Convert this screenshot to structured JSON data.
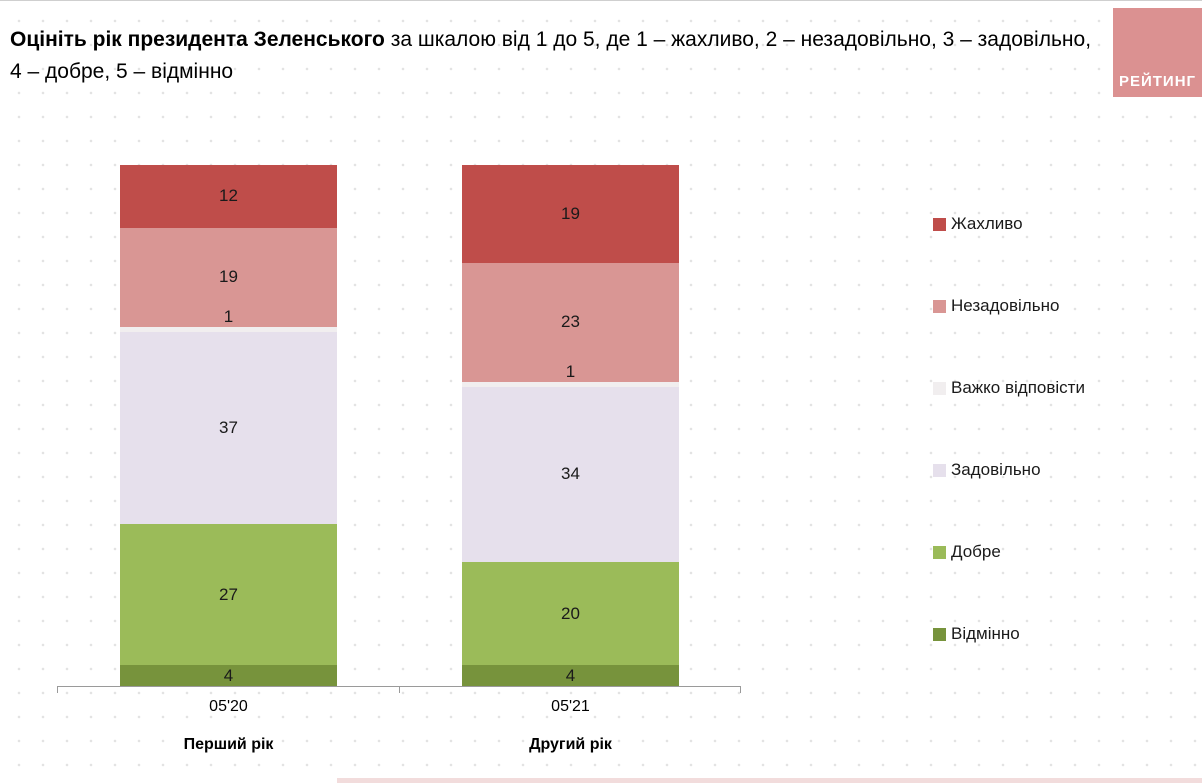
{
  "brand": {
    "name": "РЕЙТИНГ",
    "color": "#db9191"
  },
  "title": {
    "emphasis": "Оцініть рік президента Зеленського",
    "rest": " за шкалою від 1 до 5, де 1 – жахливо, 2 – незадовільно, 3 – задовільно, 4 – добре, 5 – відмінно"
  },
  "chart_data": {
    "type": "bar",
    "variant": "stacked-column",
    "stacked": true,
    "stack_order": "top-to-bottom",
    "legend_position": "right",
    "grid": "dotted page background",
    "ylim": [
      0,
      100
    ],
    "categories": [
      "05'20",
      "05'21"
    ],
    "category_sublabels": [
      "Перший рік",
      "Другий рік"
    ],
    "series": [
      {
        "name": "Жахливо",
        "color": "#bf4d4a",
        "values": [
          12,
          19
        ]
      },
      {
        "name": "Незадовільно",
        "color": "#d99694",
        "values": [
          19,
          23
        ]
      },
      {
        "name": "Важко відповісти",
        "color": "#f1eeef",
        "values": [
          1,
          1
        ]
      },
      {
        "name": "Задовільно",
        "color": "#e6e0ec",
        "values": [
          37,
          34
        ]
      },
      {
        "name": "Добре",
        "color": "#9bbb59",
        "values": [
          27,
          20
        ]
      },
      {
        "name": "Відмінно",
        "color": "#77933c",
        "values": [
          4,
          4
        ]
      }
    ]
  }
}
